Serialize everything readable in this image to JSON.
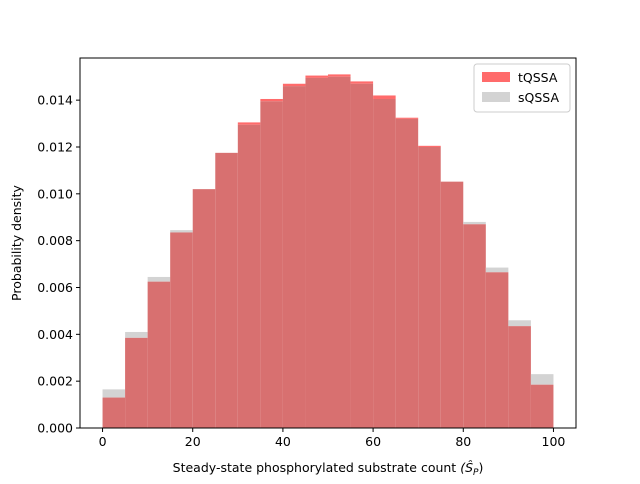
{
  "chart_data": {
    "type": "bar",
    "xlabel": "Steady-state phosphorylated substrate count",
    "xlabel_math": "(Ŝ",
    "xlabel_sub": "P",
    "xlabel_close": ")",
    "ylabel": "Probability density",
    "xlim": [
      -5,
      105
    ],
    "ylim": [
      0,
      0.0158
    ],
    "x_ticks": [
      0,
      20,
      40,
      60,
      80,
      100
    ],
    "x_tick_labels": [
      "0",
      "20",
      "40",
      "60",
      "80",
      "100"
    ],
    "y_ticks": [
      0,
      0.002,
      0.004,
      0.006,
      0.008,
      0.01,
      0.012,
      0.014
    ],
    "y_tick_labels": [
      "0.000",
      "0.002",
      "0.004",
      "0.006",
      "0.008",
      "0.010",
      "0.012",
      "0.014"
    ],
    "bin_edges": [
      0,
      5,
      10,
      15,
      20,
      25,
      30,
      35,
      40,
      45,
      50,
      55,
      60,
      65,
      70,
      75,
      80,
      85,
      90,
      95,
      100
    ],
    "legend_position": "top-right",
    "grid": false,
    "series": [
      {
        "name": "tQSSA",
        "color": "#ff6b6b",
        "values": [
          0.0013,
          0.00385,
          0.00625,
          0.00835,
          0.0102,
          0.01175,
          0.01305,
          0.01405,
          0.0147,
          0.01505,
          0.0151,
          0.0148,
          0.0142,
          0.01325,
          0.01205,
          0.01052,
          0.0087,
          0.00665,
          0.00435,
          0.00185
        ]
      },
      {
        "name": "sQSSA",
        "color": "#d3d3d3",
        "values": [
          0.00165,
          0.0041,
          0.00645,
          0.00845,
          0.0102,
          0.01175,
          0.01295,
          0.01395,
          0.0146,
          0.01495,
          0.015,
          0.0147,
          0.01405,
          0.0132,
          0.012,
          0.01052,
          0.0088,
          0.00685,
          0.0046,
          0.0023
        ]
      }
    ],
    "overlap_color": "#d87070"
  }
}
